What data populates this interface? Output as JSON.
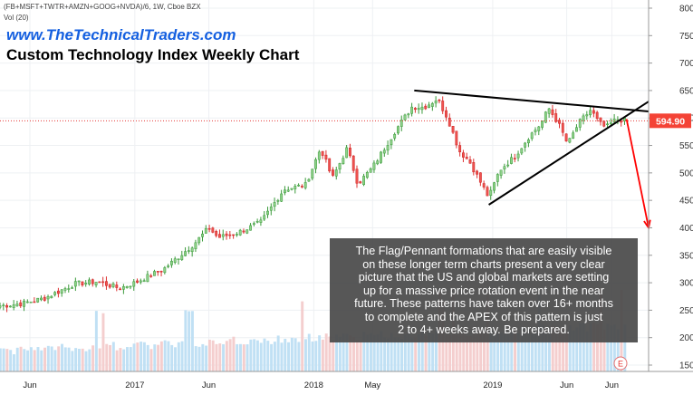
{
  "header": {
    "symbol": "(FB+MSFT+TWTR+AMZN+GOOG+NVDA)/6, 1W, Cboe BZX",
    "volume_label": "Vol (20)",
    "website": "www.TheTechnicalTraders.com",
    "title": "Custom Technology Index Weekly Chart"
  },
  "note_lines": [
    "The Flag/Pennant formations that are easily visible",
    "on these longer term charts present a very clear",
    "picture that the US and global markets are setting",
    "up for a massive price rotation event in the near",
    "future.  These patterns have taken over 16+ months",
    "to complete and the APEX of this pattern is just",
    "2 to 4+ weeks away.  Be prepared."
  ],
  "events_marker": "E",
  "colors": {
    "up": "#26a69a",
    "up_body": "#8fd18a",
    "down": "#ef5350",
    "volume": "#a8d4f2",
    "trendline": "#000000",
    "projection": "#ff0000",
    "price_label_bg": "#f44336"
  },
  "chart_data": {
    "type": "candlestick",
    "title": "",
    "y_ticks": [
      150,
      200,
      250,
      300,
      350,
      400,
      450,
      500,
      550,
      600,
      650,
      700,
      750,
      800
    ],
    "ylim": [
      140,
      810
    ],
    "x_labels": [
      "Jun",
      "2017",
      "Jun",
      "2018",
      "May",
      "2019",
      "Jun",
      "Jun"
    ],
    "x_range": [
      "2016-04-01",
      "2019-11-15"
    ],
    "x_ticks": [
      {
        "label": "Jun",
        "date": "2016-06-01"
      },
      {
        "label": "2017",
        "date": "2017-01-01"
      },
      {
        "label": "Jun",
        "date": "2017-06-01"
      },
      {
        "label": "2018",
        "date": "2018-01-01"
      },
      {
        "label": "May",
        "date": "2018-05-01"
      },
      {
        "label": "2019",
        "date": "2019-01-01"
      },
      {
        "label": "Jun",
        "date": "2019-06-01"
      },
      {
        "label": "Jun",
        "date": "2019-09-01"
      }
    ],
    "last_price": "594.90",
    "last_value": 594.9,
    "weekly_close": [
      {
        "date": "2016-04-01",
        "close": 258
      },
      {
        "date": "2016-05-15",
        "close": 262
      },
      {
        "date": "2016-07-01",
        "close": 272
      },
      {
        "date": "2016-09-01",
        "close": 298
      },
      {
        "date": "2016-10-15",
        "close": 302
      },
      {
        "date": "2016-12-01",
        "close": 290
      },
      {
        "date": "2017-01-01",
        "close": 300
      },
      {
        "date": "2017-03-01",
        "close": 325
      },
      {
        "date": "2017-05-01",
        "close": 370
      },
      {
        "date": "2017-06-01",
        "close": 400
      },
      {
        "date": "2017-06-20",
        "close": 382
      },
      {
        "date": "2017-08-01",
        "close": 392
      },
      {
        "date": "2017-09-15",
        "close": 410
      },
      {
        "date": "2017-11-01",
        "close": 470
      },
      {
        "date": "2017-12-15",
        "close": 478
      },
      {
        "date": "2018-01-15",
        "close": 545
      },
      {
        "date": "2018-02-08",
        "close": 490
      },
      {
        "date": "2018-03-10",
        "close": 545
      },
      {
        "date": "2018-04-01",
        "close": 480
      },
      {
        "date": "2018-05-01",
        "close": 510
      },
      {
        "date": "2018-06-15",
        "close": 575
      },
      {
        "date": "2018-07-20",
        "close": 620
      },
      {
        "date": "2018-08-15",
        "close": 620
      },
      {
        "date": "2018-09-10",
        "close": 635
      },
      {
        "date": "2018-10-01",
        "close": 600
      },
      {
        "date": "2018-10-25",
        "close": 540
      },
      {
        "date": "2018-11-15",
        "close": 520
      },
      {
        "date": "2018-12-24",
        "close": 455
      },
      {
        "date": "2019-01-15",
        "close": 505
      },
      {
        "date": "2019-02-15",
        "close": 530
      },
      {
        "date": "2019-03-15",
        "close": 565
      },
      {
        "date": "2019-04-10",
        "close": 590
      },
      {
        "date": "2019-04-25",
        "close": 618
      },
      {
        "date": "2019-05-15",
        "close": 590
      },
      {
        "date": "2019-06-03",
        "close": 552
      },
      {
        "date": "2019-06-25",
        "close": 590
      },
      {
        "date": "2019-07-20",
        "close": 615
      },
      {
        "date": "2019-08-05",
        "close": 592
      },
      {
        "date": "2019-08-20",
        "close": 582
      },
      {
        "date": "2019-09-10",
        "close": 598
      },
      {
        "date": "2019-09-30",
        "close": 595
      }
    ],
    "annotations": {
      "upper_trendline": [
        {
          "date": "2018-07-25",
          "value": 650
        },
        {
          "date": "2019-11-15",
          "value": 612
        }
      ],
      "lower_trendline": [
        {
          "date": "2018-12-24",
          "value": 442
        },
        {
          "date": "2019-11-15",
          "value": 630
        }
      ],
      "projection_arrow": [
        {
          "date": "2019-10-01",
          "value": 598
        },
        {
          "date": "2019-11-15",
          "value": 400
        }
      ],
      "horizontal_level": 594.9
    }
  }
}
